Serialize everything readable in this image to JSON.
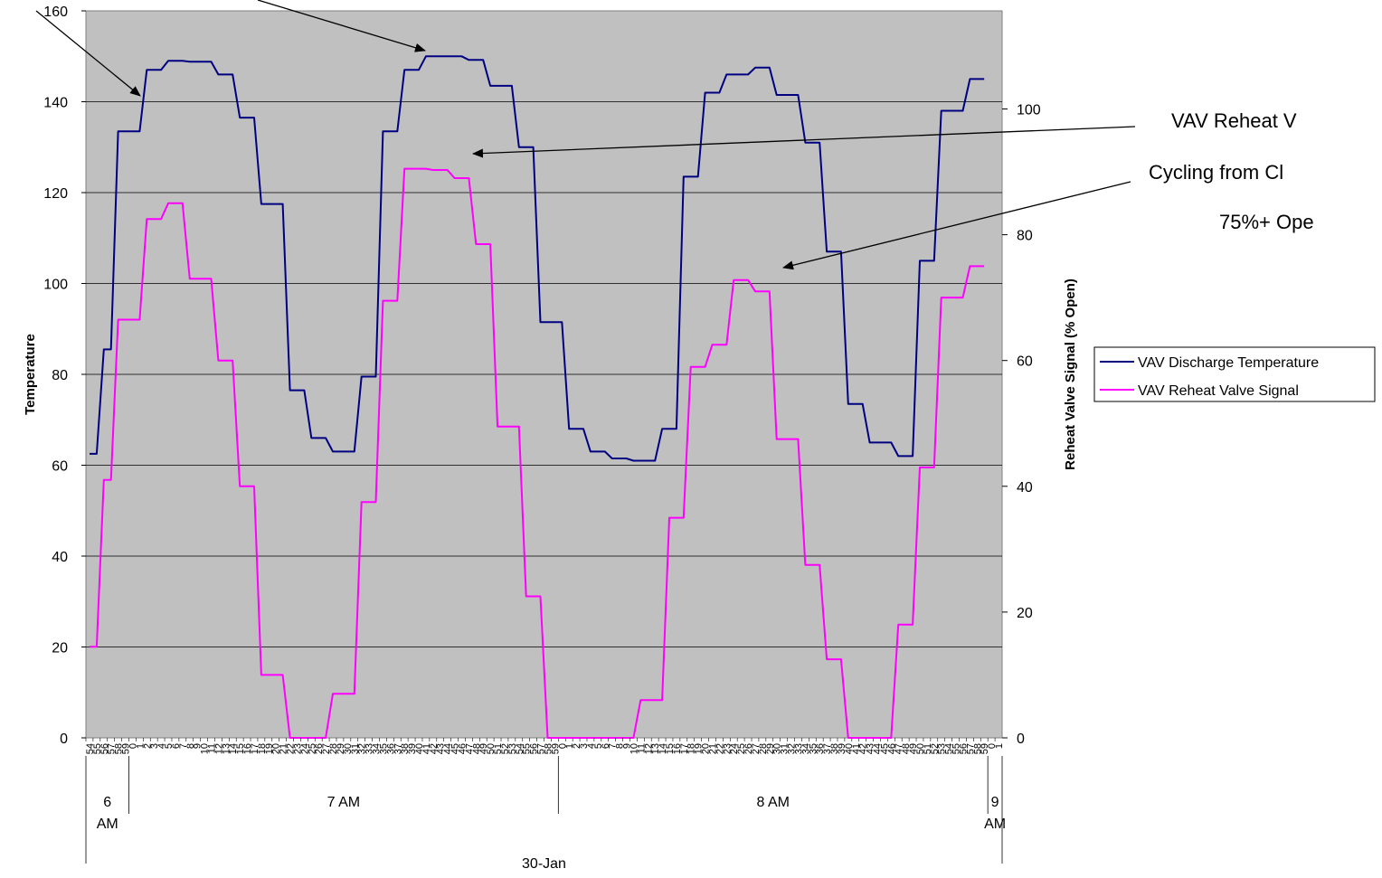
{
  "chart_data": {
    "type": "line",
    "title": "",
    "ylabel": "Temperature",
    "y2label": "Reheat Valve Signal (% Open)",
    "ylim": [
      0,
      160
    ],
    "y2lim": [
      0,
      115.6
    ],
    "yticks": [
      "0",
      "20",
      "40",
      "60",
      "80",
      "100",
      "120",
      "140",
      "160"
    ],
    "y2ticks": [
      "0",
      "20",
      "40",
      "60",
      "80",
      "100"
    ],
    "grid": true,
    "legend_position": "right",
    "x_minute_labels": [
      "54",
      "55",
      "56",
      "57",
      "58",
      "59",
      "0",
      "1",
      "2",
      "3",
      "4",
      "5",
      "6",
      "7",
      "8",
      "9",
      "10",
      "11",
      "12",
      "13",
      "14",
      "15",
      "16",
      "17",
      "18",
      "19",
      "20",
      "21",
      "22",
      "23",
      "24",
      "25",
      "26",
      "27",
      "28",
      "29",
      "30",
      "31",
      "32",
      "33",
      "34",
      "35",
      "36",
      "37",
      "38",
      "39",
      "40",
      "41",
      "42",
      "43",
      "44",
      "45",
      "46",
      "47",
      "48",
      "49",
      "50",
      "51",
      "52",
      "53",
      "54",
      "55",
      "56",
      "57",
      "58",
      "59",
      "0",
      "1",
      "2",
      "3",
      "4",
      "5",
      "6",
      "7",
      "8",
      "9",
      "10",
      "11",
      "12",
      "13",
      "14",
      "15",
      "16",
      "17",
      "18",
      "19",
      "20",
      "21",
      "22",
      "23",
      "24",
      "25",
      "26",
      "27",
      "28",
      "29",
      "30",
      "31",
      "32",
      "33",
      "34",
      "35",
      "36",
      "37",
      "38",
      "39",
      "40",
      "41",
      "42",
      "43",
      "44",
      "45",
      "46",
      "47",
      "48",
      "49",
      "50",
      "51",
      "52",
      "53",
      "54",
      "55",
      "56",
      "57",
      "58",
      "59",
      "0",
      "1"
    ],
    "x_hour_groups": [
      {
        "label_line1": "6",
        "label_line2": "AM",
        "start_index": 0,
        "count": 6
      },
      {
        "label_line1": "7 AM",
        "label_line2": "",
        "start_index": 6,
        "count": 60
      },
      {
        "label_line1": "8 AM",
        "label_line2": "",
        "start_index": 66,
        "count": 60
      },
      {
        "label_line1": "9",
        "label_line2": "AM",
        "start_index": 126,
        "count": 2
      }
    ],
    "x_date_label": "30-Jan",
    "series": [
      {
        "name": "VAV Discharge Temperature",
        "color": "#000080",
        "axis": "left",
        "points": [
          [
            0,
            62.5
          ],
          [
            1,
            62.5
          ],
          [
            2,
            85.5
          ],
          [
            3,
            85.5
          ],
          [
            4,
            133.5
          ],
          [
            5,
            133.5
          ],
          [
            6,
            133.5
          ],
          [
            7,
            133.5
          ],
          [
            8,
            147
          ],
          [
            9,
            147
          ],
          [
            10,
            147
          ],
          [
            11,
            149
          ],
          [
            12,
            149
          ],
          [
            13,
            149
          ],
          [
            14,
            148.8
          ],
          [
            15,
            148.8
          ],
          [
            16,
            148.8
          ],
          [
            17,
            148.8
          ],
          [
            18,
            146
          ],
          [
            19,
            146
          ],
          [
            20,
            146
          ],
          [
            21,
            136.5
          ],
          [
            22,
            136.5
          ],
          [
            23,
            136.5
          ],
          [
            24,
            117.5
          ],
          [
            25,
            117.5
          ],
          [
            26,
            117.5
          ],
          [
            27,
            117.5
          ],
          [
            28,
            76.5
          ],
          [
            29,
            76.5
          ],
          [
            30,
            76.5
          ],
          [
            31,
            66
          ],
          [
            32,
            66
          ],
          [
            33,
            66
          ],
          [
            34,
            63
          ],
          [
            35,
            63
          ],
          [
            36,
            63
          ],
          [
            37,
            63
          ],
          [
            38,
            79.5
          ],
          [
            39,
            79.5
          ],
          [
            40,
            79.5
          ],
          [
            41,
            133.5
          ],
          [
            42,
            133.5
          ],
          [
            43,
            133.5
          ],
          [
            44,
            147
          ],
          [
            45,
            147
          ],
          [
            46,
            147
          ],
          [
            47,
            150
          ],
          [
            48,
            150
          ],
          [
            49,
            150
          ],
          [
            50,
            150
          ],
          [
            51,
            150
          ],
          [
            52,
            150
          ],
          [
            53,
            149.2
          ],
          [
            54,
            149.2
          ],
          [
            55,
            149.2
          ],
          [
            56,
            143.5
          ],
          [
            57,
            143.5
          ],
          [
            58,
            143.5
          ],
          [
            59,
            143.5
          ],
          [
            60,
            130
          ],
          [
            61,
            130
          ],
          [
            62,
            130
          ],
          [
            63,
            91.5
          ],
          [
            64,
            91.5
          ],
          [
            65,
            91.5
          ],
          [
            66,
            91.5
          ],
          [
            67,
            68
          ],
          [
            68,
            68
          ],
          [
            69,
            68
          ],
          [
            70,
            63
          ],
          [
            71,
            63
          ],
          [
            72,
            63
          ],
          [
            73,
            61.5
          ],
          [
            74,
            61.5
          ],
          [
            75,
            61.5
          ],
          [
            76,
            61
          ],
          [
            77,
            61
          ],
          [
            78,
            61
          ],
          [
            79,
            61
          ],
          [
            80,
            68
          ],
          [
            81,
            68
          ],
          [
            82,
            68
          ],
          [
            83,
            123.5
          ],
          [
            84,
            123.5
          ],
          [
            85,
            123.5
          ],
          [
            86,
            142
          ],
          [
            87,
            142
          ],
          [
            88,
            142
          ],
          [
            89,
            146
          ],
          [
            90,
            146
          ],
          [
            91,
            146
          ],
          [
            92,
            146
          ],
          [
            93,
            147.5
          ],
          [
            94,
            147.5
          ],
          [
            95,
            147.5
          ],
          [
            96,
            141.5
          ],
          [
            97,
            141.5
          ],
          [
            98,
            141.5
          ],
          [
            99,
            141.5
          ],
          [
            100,
            131
          ],
          [
            101,
            131
          ],
          [
            102,
            131
          ],
          [
            103,
            107
          ],
          [
            104,
            107
          ],
          [
            105,
            107
          ],
          [
            106,
            73.5
          ],
          [
            107,
            73.5
          ],
          [
            108,
            73.5
          ],
          [
            109,
            65
          ],
          [
            110,
            65
          ],
          [
            111,
            65
          ],
          [
            112,
            65
          ],
          [
            113,
            62
          ],
          [
            114,
            62
          ],
          [
            115,
            62
          ],
          [
            116,
            105
          ],
          [
            117,
            105
          ],
          [
            118,
            105
          ],
          [
            119,
            138
          ],
          [
            120,
            138
          ],
          [
            121,
            138
          ],
          [
            122,
            138
          ],
          [
            123,
            145
          ],
          [
            124,
            145
          ],
          [
            125,
            145
          ]
        ]
      },
      {
        "name": "VAV Reheat Valve Signal",
        "color": "#FF00FF",
        "axis": "right",
        "points": [
          [
            0,
            14.5
          ],
          [
            1,
            14.5
          ],
          [
            2,
            41
          ],
          [
            3,
            41
          ],
          [
            4,
            66.5
          ],
          [
            5,
            66.5
          ],
          [
            6,
            66.5
          ],
          [
            7,
            66.5
          ],
          [
            8,
            82.5
          ],
          [
            9,
            82.5
          ],
          [
            10,
            82.5
          ],
          [
            11,
            85
          ],
          [
            12,
            85
          ],
          [
            13,
            85
          ],
          [
            14,
            73
          ],
          [
            15,
            73
          ],
          [
            16,
            73
          ],
          [
            17,
            73
          ],
          [
            18,
            60
          ],
          [
            19,
            60
          ],
          [
            20,
            60
          ],
          [
            21,
            40
          ],
          [
            22,
            40
          ],
          [
            23,
            40
          ],
          [
            24,
            10
          ],
          [
            25,
            10
          ],
          [
            26,
            10
          ],
          [
            27,
            10
          ],
          [
            28,
            0
          ],
          [
            29,
            0
          ],
          [
            30,
            0
          ],
          [
            31,
            0
          ],
          [
            32,
            0
          ],
          [
            33,
            0
          ],
          [
            34,
            7
          ],
          [
            35,
            7
          ],
          [
            36,
            7
          ],
          [
            37,
            7
          ],
          [
            38,
            37.5
          ],
          [
            39,
            37.5
          ],
          [
            40,
            37.5
          ],
          [
            41,
            69.5
          ],
          [
            42,
            69.5
          ],
          [
            43,
            69.5
          ],
          [
            44,
            90.5
          ],
          [
            45,
            90.5
          ],
          [
            46,
            90.5
          ],
          [
            47,
            90.5
          ],
          [
            48,
            90.3
          ],
          [
            49,
            90.3
          ],
          [
            50,
            90.3
          ],
          [
            51,
            89
          ],
          [
            52,
            89
          ],
          [
            53,
            89
          ],
          [
            54,
            78.5
          ],
          [
            55,
            78.5
          ],
          [
            56,
            78.5
          ],
          [
            57,
            49.5
          ],
          [
            58,
            49.5
          ],
          [
            59,
            49.5
          ],
          [
            60,
            49.5
          ],
          [
            61,
            22.5
          ],
          [
            62,
            22.5
          ],
          [
            63,
            22.5
          ],
          [
            64,
            0
          ],
          [
            65,
            0
          ],
          [
            66,
            0
          ],
          [
            67,
            0
          ],
          [
            68,
            0
          ],
          [
            69,
            0
          ],
          [
            70,
            0
          ],
          [
            71,
            0
          ],
          [
            72,
            0
          ],
          [
            73,
            0
          ],
          [
            74,
            0
          ],
          [
            75,
            0
          ],
          [
            76,
            0
          ],
          [
            77,
            6
          ],
          [
            78,
            6
          ],
          [
            79,
            6
          ],
          [
            80,
            6
          ],
          [
            81,
            35
          ],
          [
            82,
            35
          ],
          [
            83,
            35
          ],
          [
            84,
            59
          ],
          [
            85,
            59
          ],
          [
            86,
            59
          ],
          [
            87,
            62.5
          ],
          [
            88,
            62.5
          ],
          [
            89,
            62.5
          ],
          [
            90,
            72.8
          ],
          [
            91,
            72.8
          ],
          [
            92,
            72.8
          ],
          [
            93,
            71
          ],
          [
            94,
            71
          ],
          [
            95,
            71
          ],
          [
            96,
            47.5
          ],
          [
            97,
            47.5
          ],
          [
            98,
            47.5
          ],
          [
            99,
            47.5
          ],
          [
            100,
            27.5
          ],
          [
            101,
            27.5
          ],
          [
            102,
            27.5
          ],
          [
            103,
            12.5
          ],
          [
            104,
            12.5
          ],
          [
            105,
            12.5
          ],
          [
            106,
            0
          ],
          [
            107,
            0
          ],
          [
            108,
            0
          ],
          [
            109,
            0
          ],
          [
            110,
            0
          ],
          [
            111,
            0
          ],
          [
            112,
            0
          ],
          [
            113,
            18
          ],
          [
            114,
            18
          ],
          [
            115,
            18
          ],
          [
            116,
            43
          ],
          [
            117,
            43
          ],
          [
            118,
            43
          ],
          [
            119,
            70
          ],
          [
            120,
            70
          ],
          [
            121,
            70
          ],
          [
            122,
            70
          ],
          [
            123,
            75
          ],
          [
            124,
            75
          ],
          [
            125,
            75
          ]
        ]
      }
    ],
    "annotations": [
      {
        "lines": [
          "VAV Reheat V",
          "Cycling from Cl",
          "75%+ Ope"
        ]
      }
    ]
  }
}
